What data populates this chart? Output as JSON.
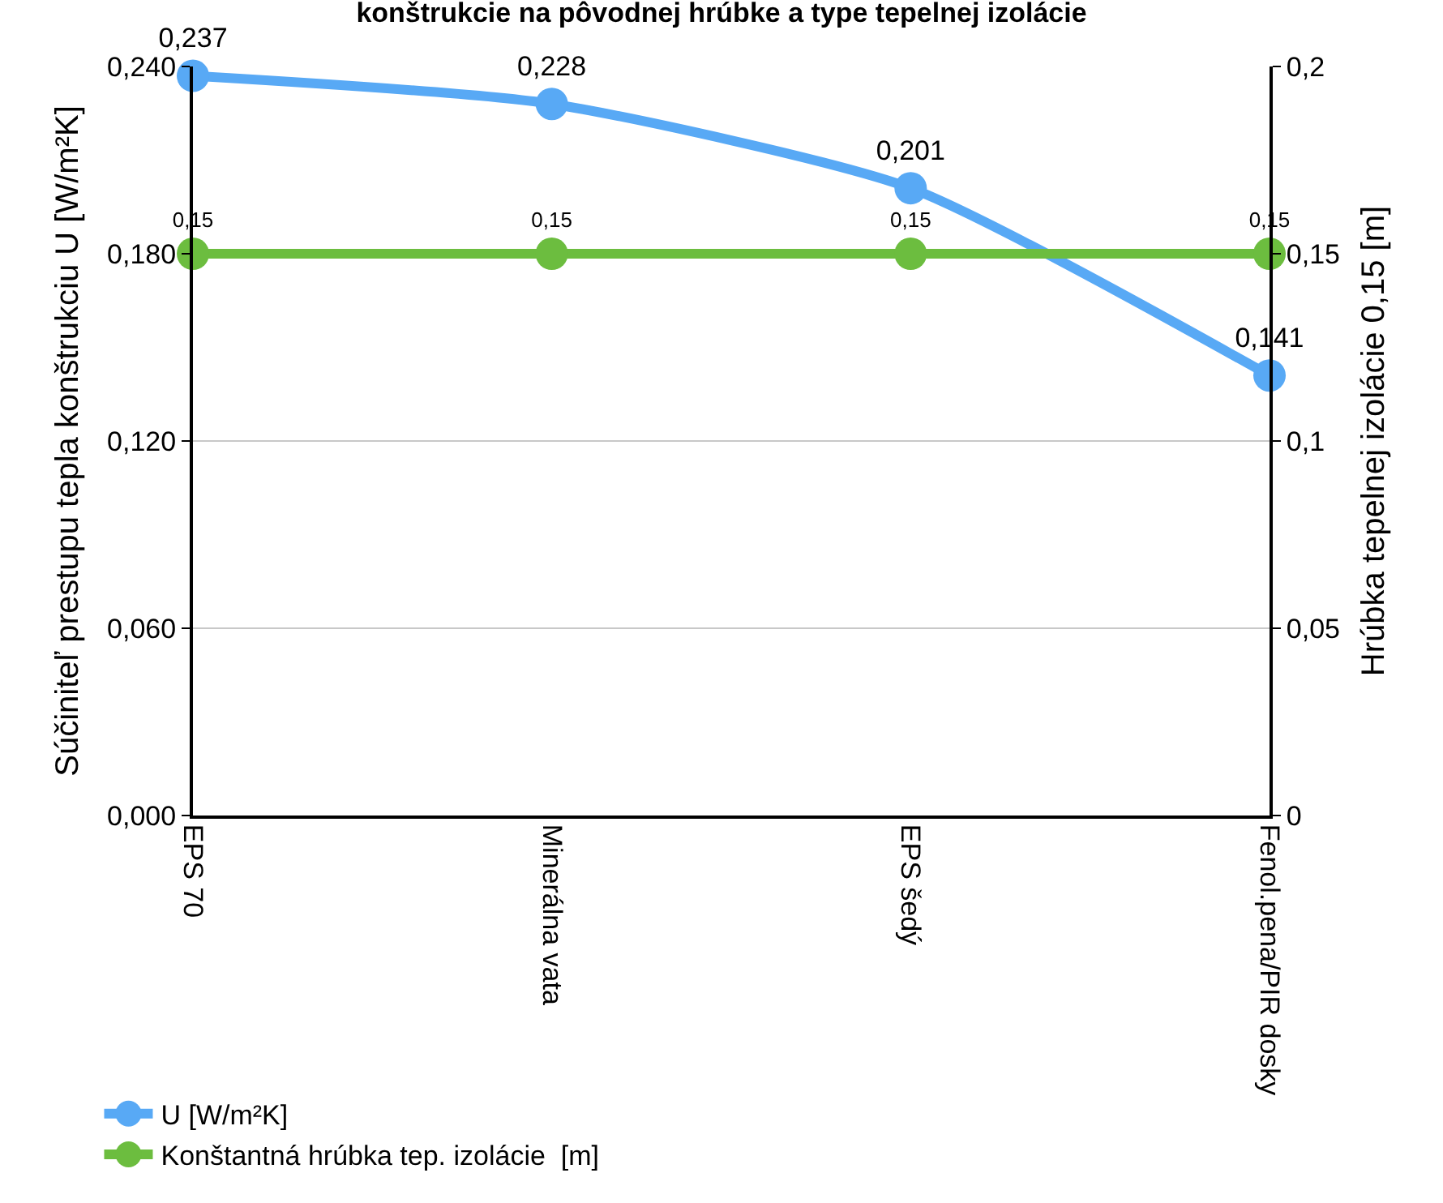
{
  "chart_data": {
    "type": "line",
    "title": "konštrukcie na pôvodnej hrúbke a type tepelnej izolácie",
    "ylabel": "Súčiniteľ prestupu tepla konštrukciu U [W/m²K]",
    "y2label": "Hrúbka tepelnej izolácie 0,15 [m]",
    "categories": [
      "EPS 70",
      "Minerálna vata",
      "EPS šedý",
      "Fenol.pena/PIR dosky"
    ],
    "series": [
      {
        "name": "U [W/m²K]",
        "color": "#58a9f5",
        "values": [
          0.237,
          0.228,
          0.201,
          0.141
        ],
        "value_labels": [
          "0,237",
          "0,228",
          "0,201",
          "0,141"
        ]
      },
      {
        "name": "Konštantná hrúbka tep. izolácie  [m]",
        "color": "#6cbd3f",
        "axis": "y2",
        "values": [
          0.15,
          0.15,
          0.15,
          0.15
        ],
        "value_labels": [
          "0,15",
          "0,15",
          "0,15",
          "0,15"
        ]
      }
    ],
    "ylim": [
      0,
      0.24
    ],
    "yticks": [
      {
        "value": 0,
        "label": "0,000"
      },
      {
        "value": 0.06,
        "label": "0,060"
      },
      {
        "value": 0.12,
        "label": "0,120"
      },
      {
        "value": 0.18,
        "label": "0,180"
      },
      {
        "value": 0.24,
        "label": "0,240"
      }
    ],
    "y2lim": [
      0,
      0.2
    ],
    "y2ticks": [
      0,
      {
        "value": 0.05,
        "label": "0,05"
      },
      {
        "value": 0.1,
        "label": "0,1"
      },
      {
        "value": 0.15,
        "label": "0,15"
      },
      {
        "value": 0.2,
        "label": "0,2"
      }
    ],
    "grid": "y",
    "legend": "bottom left",
    "marker": "circle",
    "line_style": "solid"
  }
}
